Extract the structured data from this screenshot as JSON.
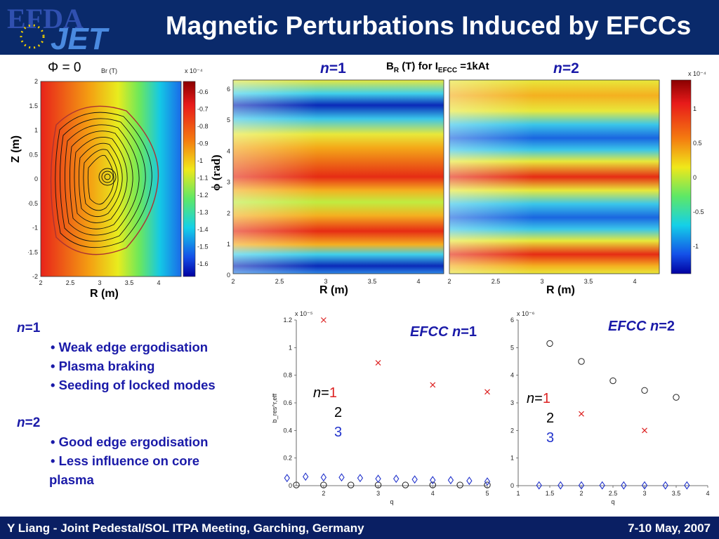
{
  "header": {
    "logo_text_top": "EFDA",
    "logo_text_bottom": "JET",
    "title": "Magnetic Perturbations Induced by EFCCs",
    "bg": "#0a2a6b"
  },
  "footer": {
    "left": "Y Liang - Joint Pedestal/SOL ITPA Meeting, Garching, Germany",
    "right": "7-10 May, 2007"
  },
  "poloidal_panel": {
    "phi_label": "Φ = 0",
    "field_label": "Br (T)",
    "xlabel": "R (m)",
    "ylabel": "Z (m)",
    "x_ticks": [
      "2",
      "2.5",
      "3",
      "3.5",
      "4"
    ],
    "y_ticks": [
      "2",
      "1.5",
      "1",
      "0.5",
      "0",
      "-0.5",
      "-1",
      "-1.5",
      "-2"
    ],
    "colorbar_exp": "x 10⁻⁴",
    "colorbar_ticks": [
      "-0.6",
      "-0.7",
      "-0.8",
      "-0.9",
      "-1",
      "-1.1",
      "-1.2",
      "-1.3",
      "-1.4",
      "-1.5",
      "-1.6"
    ]
  },
  "toroidal_panels": {
    "top_label": {
      "br": "B",
      "sub_r": "R",
      "rest": " (T) for I",
      "sub_efcc": "EFCC",
      "tail": " =1kAt"
    },
    "n1_label": {
      "n": "n",
      "eq": "=1"
    },
    "n2_label": {
      "n": "n",
      "eq": "=2"
    },
    "ylabel": "ϕ (rad)",
    "xlabel": "R (m)",
    "y_ticks": [
      "6",
      "5",
      "4",
      "3",
      "2",
      "1",
      "0"
    ],
    "x_ticks": [
      "2",
      "2.5",
      "3",
      "3.5",
      "4"
    ],
    "colorbar_exp": "x 10⁻⁴",
    "colorbar_ticks": [
      "1",
      "0.5",
      "0",
      "-0.5",
      "-1"
    ]
  },
  "notes": {
    "n1_head": {
      "n": "n",
      "eq": "=1"
    },
    "n1_items": [
      "Weak edge ergodisation",
      "Plasma braking",
      "Seeding of locked modes"
    ],
    "n2_head": {
      "n": "n",
      "eq": "=2"
    },
    "n2_items": [
      "Good edge ergodisation",
      "Less influence on core",
      "plasma"
    ]
  },
  "legend_labels": {
    "n": "n",
    "eq": "=",
    "one": "1",
    "two": "2",
    "three": "3"
  },
  "chart_data": [
    {
      "type": "scatter",
      "title": "EFCC n=1",
      "title_parts": {
        "pre": "EFCC ",
        "n": "n",
        "eq": "=1"
      },
      "xlabel": "q",
      "ylabel": "b_res^r,eff",
      "y_exp": "x 10⁻⁵",
      "xlim": [
        1.5,
        5
      ],
      "ylim": [
        0,
        1.2
      ],
      "x_ticks": [
        "2",
        "3",
        "4",
        "5"
      ],
      "y_ticks": [
        "0",
        "0.2",
        "0.4",
        "0.6",
        "0.8",
        "1",
        "1.2"
      ],
      "series": [
        {
          "name": "1",
          "marker": "x",
          "color": "#dd2222",
          "x": [
            2,
            3,
            4,
            5
          ],
          "y": [
            1.2,
            0.89,
            0.73,
            0.68
          ]
        },
        {
          "name": "2",
          "marker": "circle",
          "color": "#222222",
          "x": [
            1.5,
            2,
            2.5,
            3,
            3.5,
            4,
            4.5,
            5
          ],
          "y": [
            0.005,
            0.005,
            0.005,
            0.005,
            0.005,
            0.005,
            0.005,
            0.005
          ]
        },
        {
          "name": "3",
          "marker": "diamond",
          "color": "#2233cc",
          "x": [
            1.33,
            1.67,
            2,
            2.33,
            2.67,
            3,
            3.33,
            3.67,
            4,
            4.33,
            4.67,
            5
          ],
          "y": [
            0.055,
            0.065,
            0.06,
            0.06,
            0.055,
            0.05,
            0.05,
            0.045,
            0.04,
            0.04,
            0.035,
            0.03
          ]
        }
      ]
    },
    {
      "type": "scatter",
      "title": "EFCC n=2",
      "title_parts": {
        "pre": "EFCC ",
        "n": "n",
        "eq": "=2"
      },
      "xlabel": "q",
      "ylabel": "b_res^r,eff",
      "y_exp": "x 10⁻⁶",
      "xlim": [
        1,
        4
      ],
      "ylim": [
        0,
        6
      ],
      "x_ticks": [
        "1",
        "1.5",
        "2",
        "2.5",
        "3",
        "3.5",
        "4"
      ],
      "y_ticks": [
        "0",
        "1",
        "2",
        "3",
        "4",
        "5",
        "6"
      ],
      "series": [
        {
          "name": "1",
          "marker": "x",
          "color": "#dd2222",
          "x": [
            2,
            3
          ],
          "y": [
            2.6,
            2.0
          ]
        },
        {
          "name": "2",
          "marker": "circle",
          "color": "#222222",
          "x": [
            1.5,
            2,
            2.5,
            3,
            3.5
          ],
          "y": [
            5.15,
            4.5,
            3.8,
            3.45,
            3.2
          ]
        },
        {
          "name": "3",
          "marker": "diamond",
          "color": "#2233cc",
          "x": [
            1.33,
            1.67,
            2,
            2.33,
            2.67,
            3,
            3.33,
            3.67
          ],
          "y": [
            0.01,
            0.01,
            0.01,
            0.01,
            0.01,
            0.01,
            0.01,
            0.01
          ]
        }
      ]
    }
  ]
}
